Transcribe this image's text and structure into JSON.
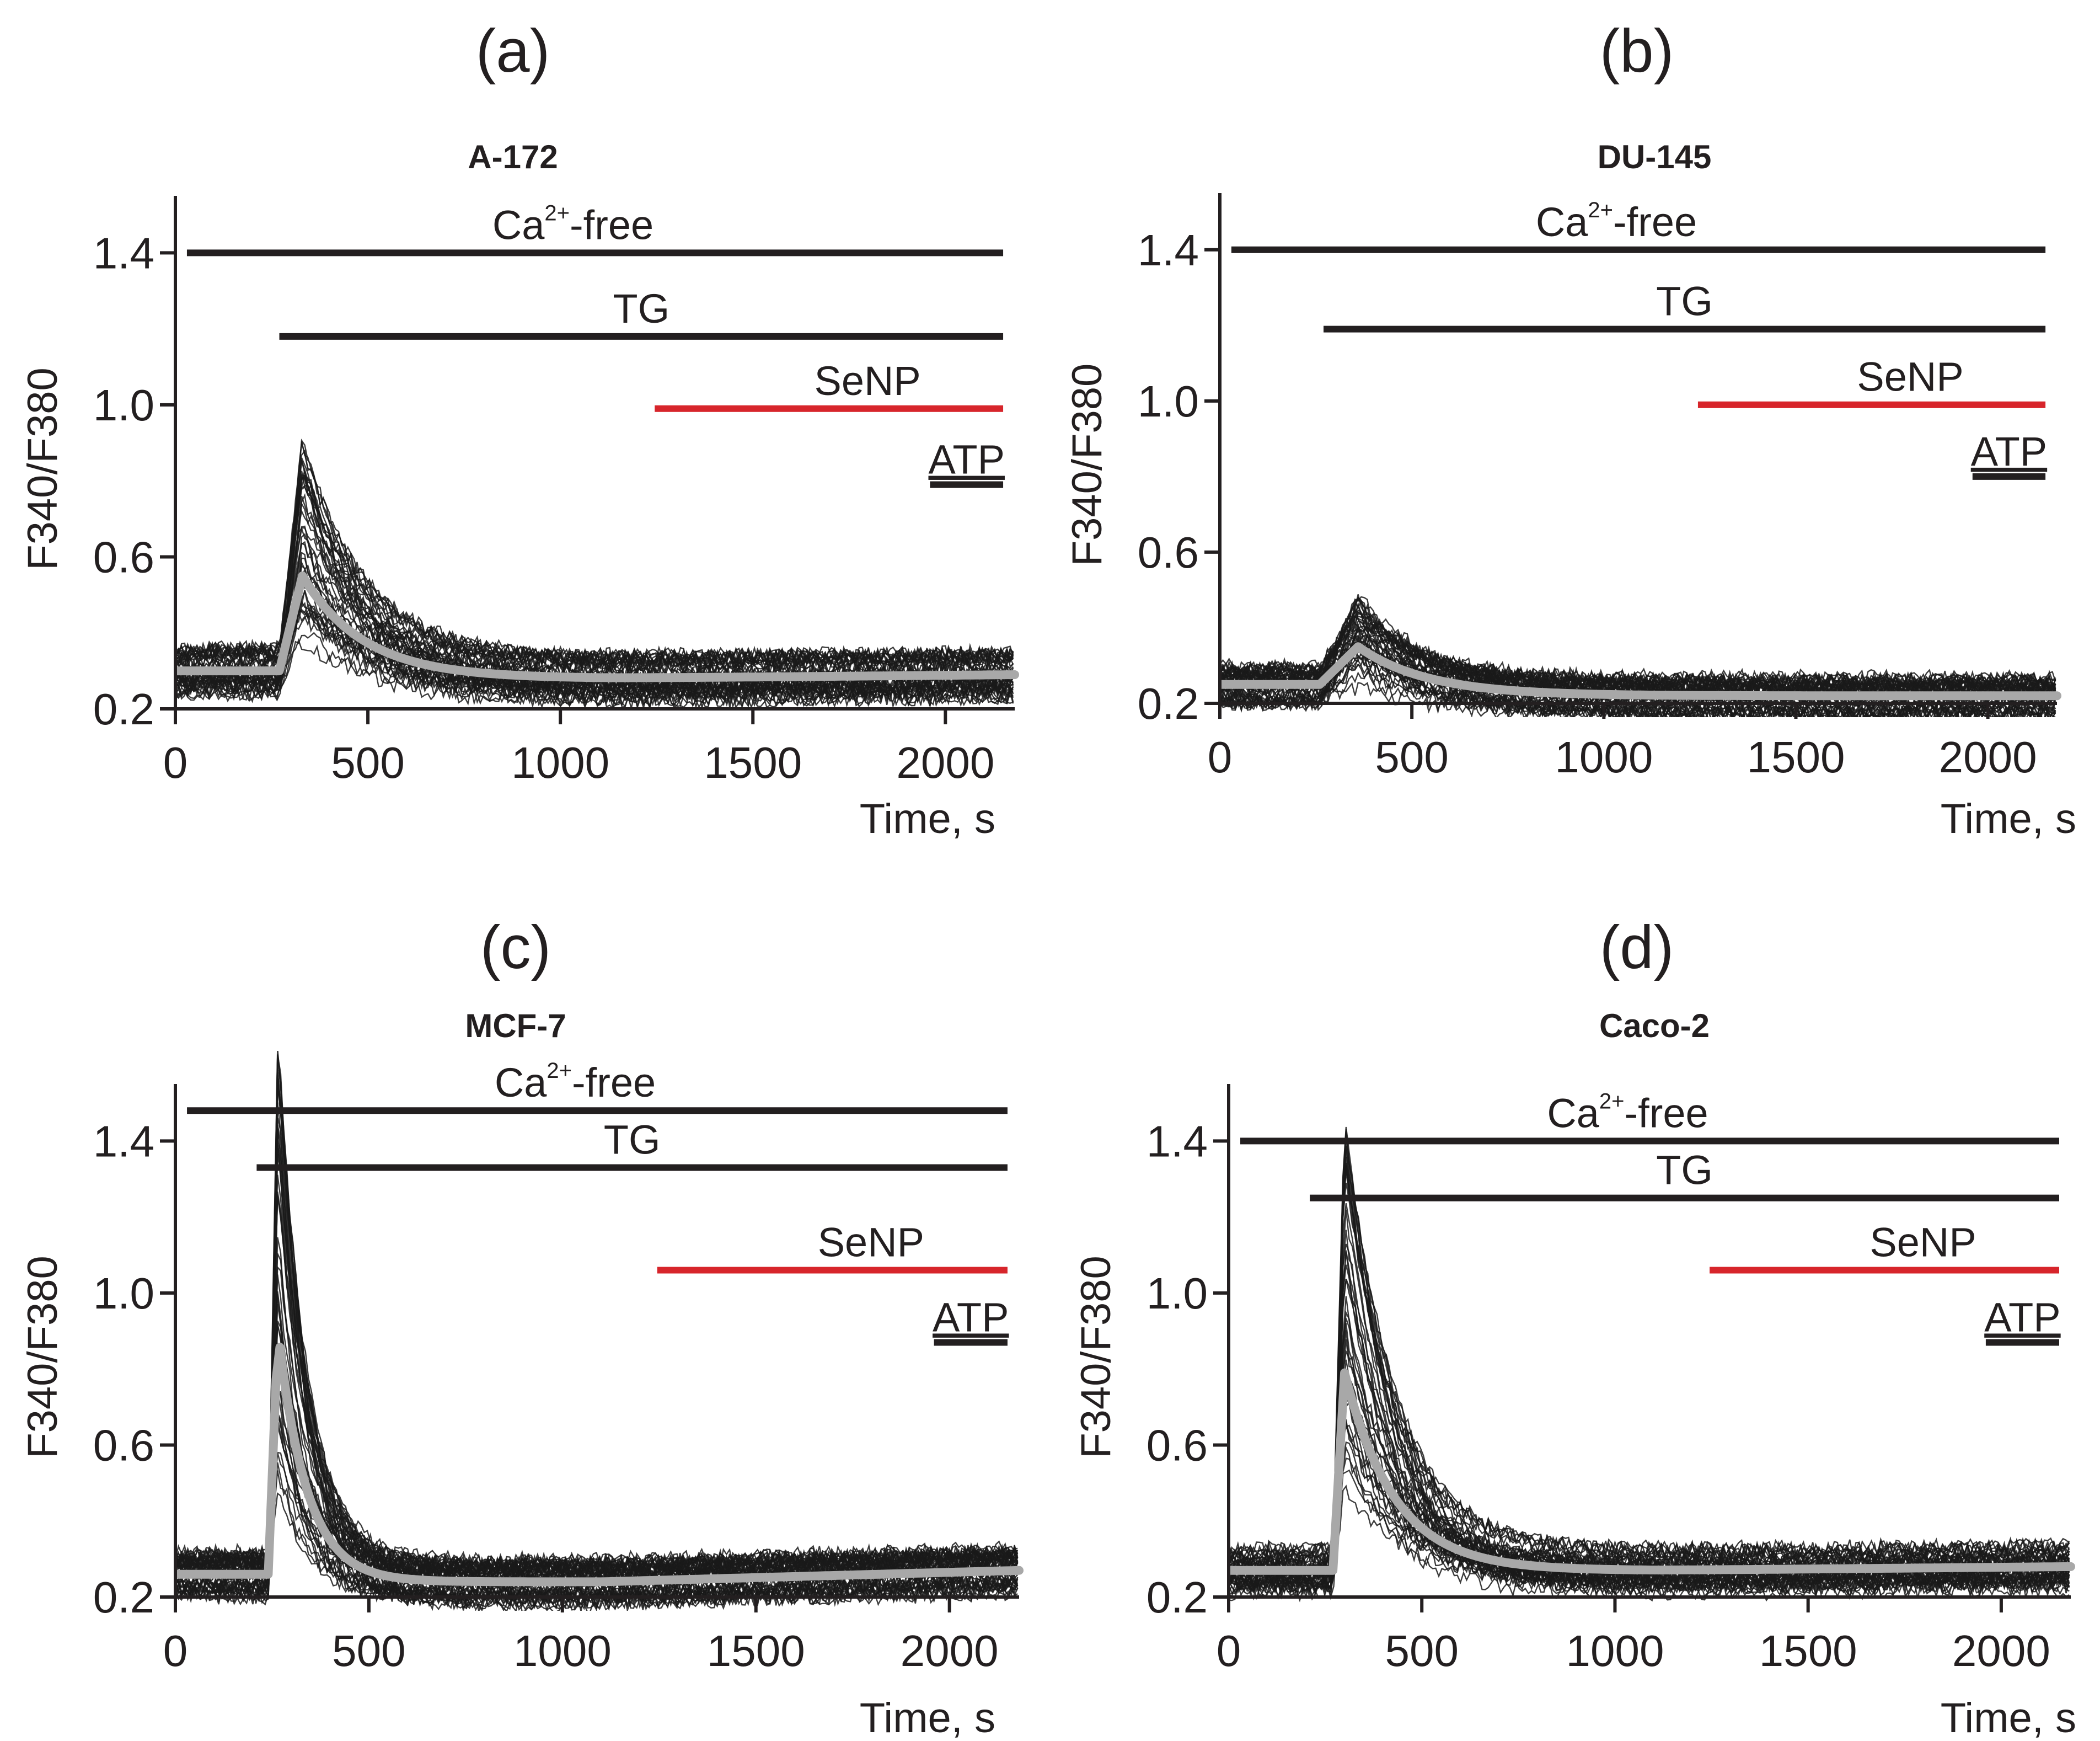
{
  "colors": {
    "axis": "#231f20",
    "traces": "#1a1a1a",
    "mean": "#a8a8a8",
    "senp_bar": "#d7252b",
    "black_bar": "#231f20"
  },
  "bar_labels": {
    "ca_base": "Ca",
    "ca_sup": "2+",
    "ca_suffix": "-free",
    "tg": "TG",
    "senp": "SeNP",
    "atp": "ATP"
  },
  "chart_data": [
    {
      "type": "line",
      "panel": "(a)",
      "title": "A-172",
      "xlabel": "Time, s",
      "ylabel": "F340/F380",
      "xlim": [
        0,
        2180
      ],
      "ylim": [
        0.2,
        1.55
      ],
      "xticks": [
        "0",
        "500",
        "1000",
        "1500",
        "2000"
      ],
      "yticks": [
        "0.2",
        "0.6",
        "1.0",
        "1.4"
      ],
      "treatment_bars": [
        {
          "label": "Ca2+-free",
          "start": 30,
          "end": 2150,
          "y": 1.4
        },
        {
          "label": "TG",
          "start": 270,
          "end": 2150,
          "y": 1.18
        },
        {
          "label": "SeNP",
          "start": 1245,
          "end": 2150,
          "y": 0.99
        },
        {
          "label": "ATP",
          "start": 1960,
          "end": 2150,
          "y": 0.79
        }
      ],
      "mean_trace": {
        "baseline": 0.3,
        "onset": 270,
        "peak_time": 330,
        "peak": 0.55,
        "tau": 160,
        "late": 0.28,
        "end_value": 0.29
      },
      "traces": {
        "count": 45,
        "noise": 0.022,
        "peak_spread": 0.35,
        "baseline_spread": 0.06
      }
    },
    {
      "type": "line",
      "panel": "(b)",
      "title": "DU-145",
      "xlabel": "Time, s",
      "ylabel": "F340/F380",
      "xlim": [
        0,
        2180
      ],
      "ylim": [
        0.2,
        1.55
      ],
      "xticks": [
        "0",
        "500",
        "1000",
        "1500",
        "2000"
      ],
      "yticks": [
        "0.2",
        "0.6",
        "1.0",
        "1.4"
      ],
      "treatment_bars": [
        {
          "label": "Ca2+-free",
          "start": 30,
          "end": 2150,
          "y": 1.4
        },
        {
          "label": "TG",
          "start": 270,
          "end": 2150,
          "y": 1.19
        },
        {
          "label": "SeNP",
          "start": 1245,
          "end": 2150,
          "y": 0.99
        },
        {
          "label": "ATP",
          "start": 1960,
          "end": 2150,
          "y": 0.8
        }
      ],
      "mean_trace": {
        "baseline": 0.25,
        "onset": 260,
        "peak_time": 360,
        "peak": 0.35,
        "tau": 180,
        "late": 0.22,
        "end_value": 0.22
      },
      "traces": {
        "count": 45,
        "noise": 0.02,
        "peak_spread": 0.18,
        "baseline_spread": 0.05
      }
    },
    {
      "type": "line",
      "panel": "(c)",
      "title": "MCF-7",
      "xlabel": "Time, s",
      "ylabel": "F340/F380",
      "xlim": [
        0,
        2180
      ],
      "ylim": [
        0.2,
        1.55
      ],
      "xticks": [
        "0",
        "500",
        "1000",
        "1500",
        "2000"
      ],
      "yticks": [
        "0.2",
        "0.6",
        "1.0",
        "1.4"
      ],
      "treatment_bars": [
        {
          "label": "Ca2+-free",
          "start": 30,
          "end": 2150,
          "y": 1.48
        },
        {
          "label": "TG",
          "start": 210,
          "end": 2150,
          "y": 1.33
        },
        {
          "label": "SeNP",
          "start": 1245,
          "end": 2150,
          "y": 1.06
        },
        {
          "label": "ATP",
          "start": 1960,
          "end": 2150,
          "y": 0.87
        }
      ],
      "mean_trace": {
        "baseline": 0.26,
        "onset": 240,
        "peak_time": 265,
        "peak": 0.9,
        "tau": 75,
        "late": 0.24,
        "end_value": 0.27
      },
      "traces": {
        "count": 50,
        "noise": 0.022,
        "peak_spread": 0.3,
        "baseline_spread": 0.06
      }
    },
    {
      "type": "line",
      "panel": "(d)",
      "title": "Caco-2",
      "xlabel": "Time, s",
      "ylabel": "F340/F380",
      "xlim": [
        0,
        2180
      ],
      "ylim": [
        0.2,
        1.55
      ],
      "xticks": [
        "0",
        "500",
        "1000",
        "1500",
        "2000"
      ],
      "yticks": [
        "0.2",
        "0.6",
        "1.0",
        "1.4"
      ],
      "treatment_bars": [
        {
          "label": "Ca2+-free",
          "start": 30,
          "end": 2150,
          "y": 1.4
        },
        {
          "label": "TG",
          "start": 210,
          "end": 2150,
          "y": 1.25
        },
        {
          "label": "SeNP",
          "start": 1245,
          "end": 2150,
          "y": 1.06
        },
        {
          "label": "ATP",
          "start": 1960,
          "end": 2150,
          "y": 0.87
        }
      ],
      "mean_trace": {
        "baseline": 0.27,
        "onset": 270,
        "peak_time": 300,
        "peak": 0.79,
        "tau": 130,
        "late": 0.27,
        "end_value": 0.28
      },
      "traces": {
        "count": 45,
        "noise": 0.022,
        "peak_spread": 0.3,
        "baseline_spread": 0.06
      }
    }
  ]
}
